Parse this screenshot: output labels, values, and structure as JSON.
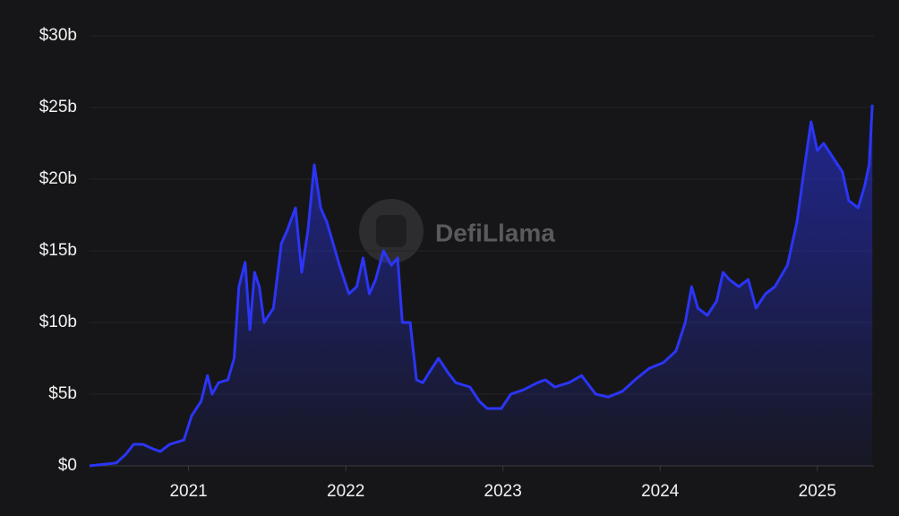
{
  "chart_data": {
    "type": "area",
    "watermark": "DefiLlama",
    "x": [
      2020.37,
      2020.54,
      2020.6,
      2020.65,
      2020.71,
      2020.77,
      2020.82,
      2020.88,
      2020.97,
      2021.02,
      2021.08,
      2021.12,
      2021.15,
      2021.19,
      2021.25,
      2021.29,
      2021.32,
      2021.36,
      2021.39,
      2021.42,
      2021.45,
      2021.48,
      2021.54,
      2021.59,
      2021.63,
      2021.68,
      2021.72,
      2021.76,
      2021.8,
      2021.84,
      2021.88,
      2021.92,
      2021.96,
      2022.02,
      2022.07,
      2022.11,
      2022.15,
      2022.19,
      2022.24,
      2022.29,
      2022.33,
      2022.36,
      2022.41,
      2022.45,
      2022.49,
      2022.53,
      2022.59,
      2022.65,
      2022.7,
      2022.79,
      2022.85,
      2022.9,
      2022.99,
      2023.05,
      2023.13,
      2023.22,
      2023.27,
      2023.33,
      2023.42,
      2023.5,
      2023.59,
      2023.67,
      2023.76,
      2023.84,
      2023.93,
      2024.02,
      2024.1,
      2024.16,
      2024.2,
      2024.24,
      2024.3,
      2024.36,
      2024.4,
      2024.44,
      2024.5,
      2024.56,
      2024.61,
      2024.67,
      2024.73,
      2024.81,
      2024.87,
      2024.92,
      2024.96,
      2025.0,
      2025.04,
      2025.1,
      2025.16,
      2025.2,
      2025.26,
      2025.3,
      2025.33,
      2025.35
    ],
    "series": [
      {
        "color": "#2b35f5",
        "values": [
          0,
          0.2,
          0.8,
          1.5,
          1.5,
          1.2,
          1.0,
          1.5,
          1.8,
          3.5,
          4.5,
          6.3,
          5.0,
          5.8,
          6.0,
          7.5,
          12.5,
          14.2,
          9.5,
          13.5,
          12.5,
          10.0,
          11.0,
          15.5,
          16.5,
          18.0,
          13.5,
          16.5,
          21.0,
          18.0,
          17.0,
          15.5,
          14.0,
          12.0,
          12.5,
          14.5,
          12.0,
          13.0,
          15.0,
          14.0,
          14.5,
          10.0,
          10.0,
          6.0,
          5.8,
          6.5,
          7.5,
          6.5,
          5.8,
          5.5,
          4.5,
          4.0,
          4.0,
          5.0,
          5.3,
          5.8,
          6.0,
          5.5,
          5.8,
          6.3,
          5.0,
          4.8,
          5.2,
          6.0,
          6.8,
          7.2,
          8.0,
          10.0,
          12.5,
          11.0,
          10.5,
          11.5,
          13.5,
          13.0,
          12.5,
          13.0,
          11.0,
          12.0,
          12.5,
          14.0,
          17.0,
          21.0,
          24.0,
          22.0,
          22.5,
          21.5,
          20.5,
          18.5,
          18.0,
          19.5,
          21.0,
          25.2
        ]
      }
    ],
    "xlim": [
      2020.37,
      2025.36
    ],
    "xticks": [
      2021,
      2022,
      2023,
      2024,
      2025
    ],
    "ylim": [
      0,
      30
    ],
    "yticks": [
      {
        "value": 0,
        "label": "$0"
      },
      {
        "value": 5,
        "label": "$5b"
      },
      {
        "value": 10,
        "label": "$10b"
      },
      {
        "value": 15,
        "label": "$15b"
      },
      {
        "value": 20,
        "label": "$20b"
      },
      {
        "value": 25,
        "label": "$25b"
      },
      {
        "value": 30,
        "label": "$30b"
      }
    ],
    "grid": true
  }
}
